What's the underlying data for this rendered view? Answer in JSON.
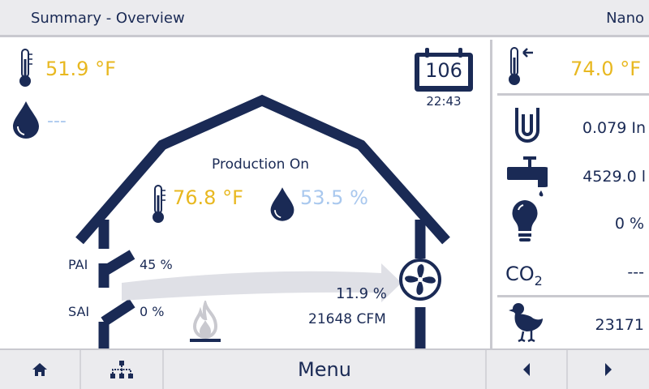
{
  "header": {
    "title": "Summary - Overview",
    "device": "Nano"
  },
  "outside": {
    "temperature": "51.9 °F",
    "humidity": "---"
  },
  "calendar": {
    "day": "106",
    "time": "22:43"
  },
  "house": {
    "status": "Production On",
    "temperature": "76.8 °F",
    "humidity": "53.5 %",
    "pai_label": "PAI",
    "pai_value": "45 %",
    "sai_label": "SAI",
    "sai_value": "0 %",
    "fan_percent": "11.9 %",
    "airflow": "21648 CFM"
  },
  "sidebar": {
    "target_temperature": "74.0 °F",
    "static_pressure": "0.079 In",
    "water": "4529.0 l",
    "light": "0 %",
    "co2_label": "CO",
    "co2_sub": "2",
    "co2_value": "---",
    "animals": "23171"
  },
  "footer": {
    "menu_label": "Menu",
    "home_icon": "home-icon",
    "network_icon": "network-icon",
    "prev_icon": "arrow-left-icon",
    "next_icon": "arrow-right-icon"
  },
  "colors": {
    "navy": "#1a2a55",
    "yellow": "#e8b820",
    "light_blue": "#a9c8ee",
    "divider": "#c9c9cf"
  }
}
